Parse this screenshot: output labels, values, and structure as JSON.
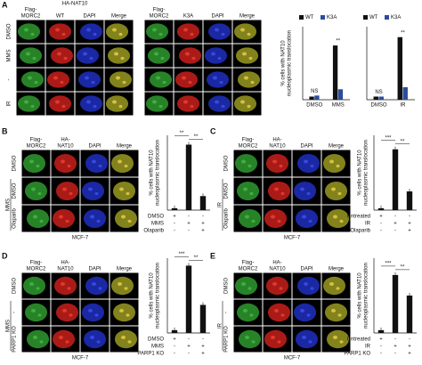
{
  "figure": {
    "panels": [
      {
        "letter": "A",
        "span_header": "HA-NAT10",
        "grids": [
          {
            "headers": [
              [
                "Flag-",
                "MORC2"
              ],
              [
                "WT"
              ],
              [
                "DAPI"
              ],
              [
                "Merge"
              ]
            ],
            "row_labels": [
              "DMSO",
              "MMS",
              "-",
              "IR"
            ]
          },
          {
            "headers": [
              [
                "Flag-",
                "MORC2"
              ],
              [
                "K3A"
              ],
              [
                "DAPI"
              ],
              [
                "Merge"
              ]
            ]
          }
        ]
      },
      {
        "letter": "B",
        "grids": [
          {
            "headers": [
              [
                "Flag-",
                "MORC2"
              ],
              [
                "HA-",
                "NAT10"
              ],
              [
                "DAPI"
              ],
              [
                "Merge"
              ]
            ],
            "row_labels": [
              "DMSO",
              "DMSO",
              "Olaparib"
            ],
            "group_label": "MMS",
            "cell_line": "MCF-7"
          }
        ]
      },
      {
        "letter": "C",
        "grids": [
          {
            "headers": [
              [
                "Flag-",
                "MORC2"
              ],
              [
                "HA-",
                "NAT10"
              ],
              [
                "DAPI"
              ],
              [
                "Merge"
              ]
            ],
            "row_labels": [
              "DMSO",
              "DMSO",
              "Olaparib"
            ],
            "group_label": "IR",
            "cell_line": "MCF-7"
          }
        ]
      },
      {
        "letter": "D",
        "grids": [
          {
            "headers": [
              [
                "Flag-",
                "MORC2"
              ],
              [
                "HA-",
                "NAT10"
              ],
              [
                "DAPI"
              ],
              [
                "Merge"
              ]
            ],
            "row_labels": [
              "DMSO",
              "-",
              "PARP1 KO"
            ],
            "group_label": "MMS",
            "cell_line": "MCF-7"
          }
        ]
      },
      {
        "letter": "E",
        "grids": [
          {
            "headers": [
              [
                "Flag-",
                "MORC2"
              ],
              [
                "HA-",
                "NAT10"
              ],
              [
                "DAPI"
              ],
              [
                "Merge"
              ]
            ],
            "row_labels": [
              "DMSO",
              "-",
              "PARP1 KO"
            ],
            "group_label": "IR",
            "cell_line": "MCF-7"
          }
        ]
      }
    ]
  },
  "chart_data": [
    {
      "type": "bar",
      "y_label": [
        "% cells with NAT10",
        "nucleoplasmic translocation"
      ],
      "categories": [
        "DMSO",
        "MMS"
      ],
      "series": [
        {
          "name": "WT",
          "color": "#111111",
          "values": [
            3,
            52
          ]
        },
        {
          "name": "K3A",
          "color": "#2b4c9b",
          "values": [
            4,
            10
          ]
        }
      ],
      "annotations": [
        "NS",
        "**"
      ],
      "ylim": [
        0,
        70
      ]
    },
    {
      "type": "bar",
      "categories": [
        "DMSO",
        "IR"
      ],
      "series": [
        {
          "name": "WT",
          "color": "#111111",
          "values": [
            3,
            60
          ]
        },
        {
          "name": "K3A",
          "color": "#2b4c9b",
          "values": [
            3,
            12
          ]
        }
      ],
      "annotations": [
        "NS",
        "**"
      ],
      "ylim": [
        0,
        70
      ]
    },
    {
      "type": "bar",
      "y_label": [
        "% cells with NAT10",
        "nucleoplasmic translocation"
      ],
      "values": [
        2,
        70,
        15
      ],
      "color": "#111111",
      "conditions": [
        {
          "name": "DMSO",
          "signs": [
            "+",
            "-",
            "-"
          ]
        },
        {
          "name": "MMS",
          "signs": [
            "-",
            "+",
            "+"
          ]
        },
        {
          "name": "Olaparib",
          "signs": [
            "-",
            "-",
            "+"
          ]
        }
      ],
      "annotations": [
        "**",
        "**"
      ],
      "ylim": [
        0,
        80
      ]
    },
    {
      "type": "bar",
      "y_label": [
        "% cells with NAT10",
        "nucleoplasmic translocation"
      ],
      "values": [
        2,
        65,
        20
      ],
      "color": "#111111",
      "conditions": [
        {
          "name": "Untreated",
          "signs": [
            "+",
            "-",
            "-"
          ]
        },
        {
          "name": "IR",
          "signs": [
            "-",
            "+",
            "+"
          ]
        },
        {
          "name": "Olaparib",
          "signs": [
            "-",
            "-",
            "+"
          ]
        }
      ],
      "annotations": [
        "***",
        "**"
      ],
      "ylim": [
        0,
        80
      ]
    },
    {
      "type": "bar",
      "y_label": [
        "% cells with NAT10",
        "nucleoplasmic translocation"
      ],
      "values": [
        3,
        72,
        30
      ],
      "color": "#111111",
      "conditions": [
        {
          "name": "DMSO",
          "signs": [
            "+",
            "-",
            "-"
          ]
        },
        {
          "name": "MMS",
          "signs": [
            "-",
            "+",
            "+"
          ]
        },
        {
          "name": "PARP1 KO",
          "signs": [
            "-",
            "-",
            "+"
          ]
        }
      ],
      "annotations": [
        "***",
        "**"
      ],
      "ylim": [
        0,
        80
      ]
    },
    {
      "type": "bar",
      "y_label": [
        "% cells with NAT10",
        "nucleoplasmic translocation"
      ],
      "values": [
        3,
        62,
        40
      ],
      "color": "#111111",
      "conditions": [
        {
          "name": "Untreated",
          "signs": [
            "+",
            "-",
            "-"
          ]
        },
        {
          "name": "IR",
          "signs": [
            "-",
            "+",
            "+"
          ]
        },
        {
          "name": "PARP1 KO",
          "signs": [
            "-",
            "-",
            "+"
          ]
        }
      ],
      "annotations": [
        "***",
        "**"
      ],
      "ylim": [
        0,
        80
      ]
    }
  ]
}
